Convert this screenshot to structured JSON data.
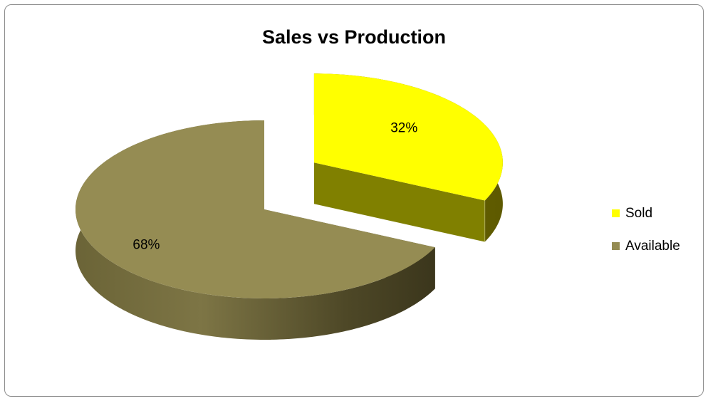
{
  "chart_data": {
    "type": "pie",
    "title": "Sales vs Production",
    "categories": [
      "Sold",
      "Available"
    ],
    "values": [
      32,
      68
    ],
    "value_labels": [
      "32%",
      "68%"
    ],
    "exploded": [
      "Sold"
    ],
    "style": "3d",
    "legend_position": "right",
    "colors": {
      "Sold": "#ffff00",
      "Available": "#958c53"
    }
  }
}
